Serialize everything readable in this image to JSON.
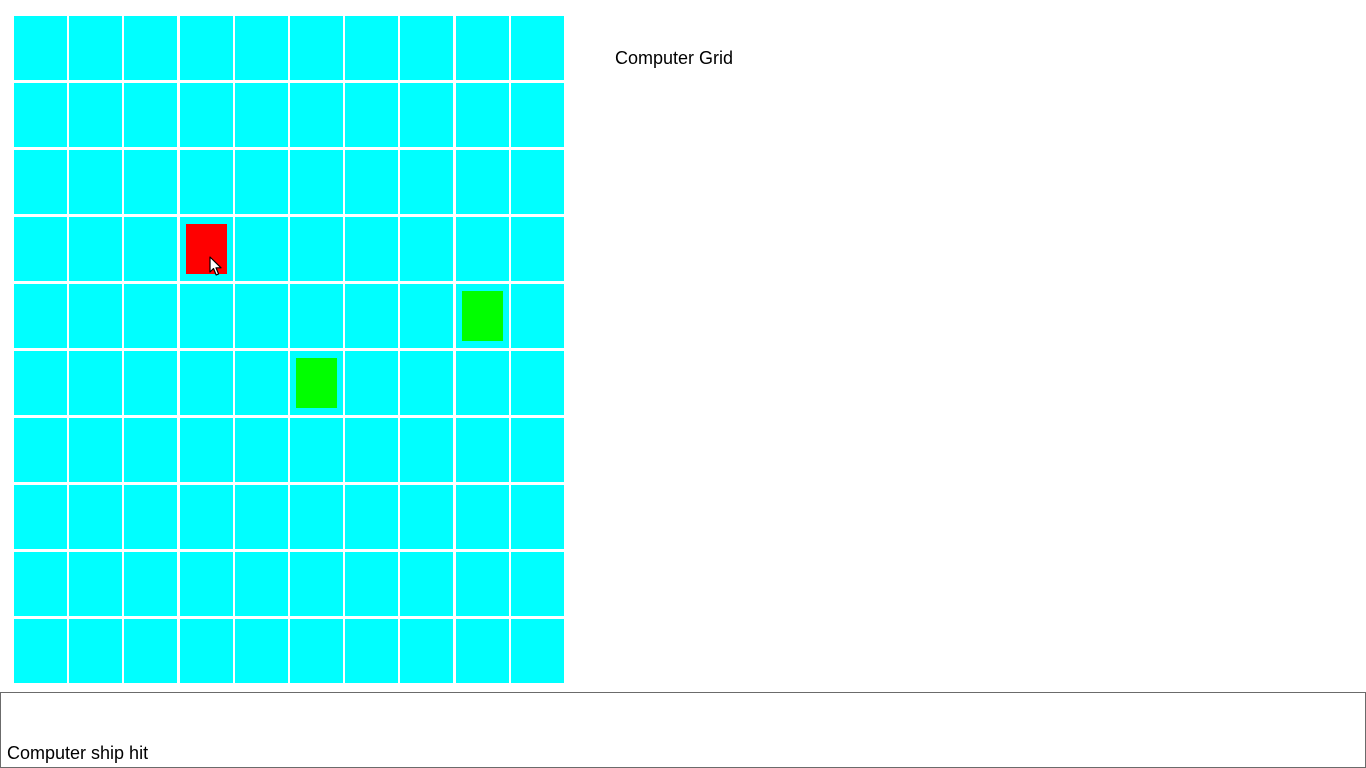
{
  "grid_title": "Computer Grid",
  "status_message": "Computer ship hit",
  "grid": {
    "rows": 10,
    "cols": 10,
    "water_color": "#00ffff",
    "markers": [
      {
        "row": 4,
        "col": 4,
        "state": "hit",
        "color": "#ff0000"
      },
      {
        "row": 5,
        "col": 9,
        "state": "ship",
        "color": "#00ff00"
      },
      {
        "row": 6,
        "col": 6,
        "state": "ship",
        "color": "#00ff00"
      }
    ]
  },
  "cursor_icon": "arrow-cursor-icon"
}
